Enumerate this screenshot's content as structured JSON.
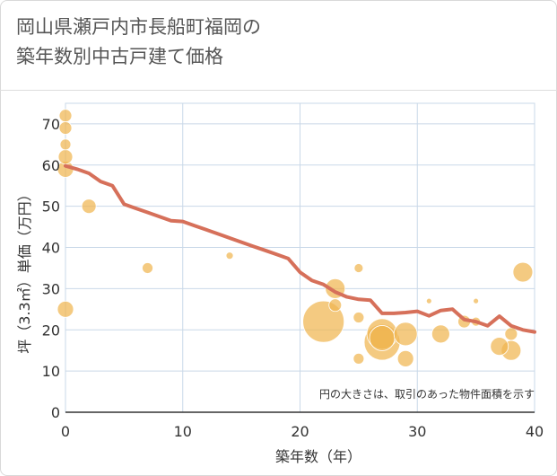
{
  "header": {
    "title_line1": "岡山県瀬戸内市長船町福岡の",
    "title_line2": "築年数別中古戸建て価格"
  },
  "chart_data": {
    "type": "scatter",
    "title": "岡山県瀬戸内市長船町福岡の築年数別中古戸建て価格",
    "xlabel": "築年数（年）",
    "ylabel": "坪（3.3㎡）単価（万円）",
    "xlim": [
      0,
      40
    ],
    "ylim": [
      0,
      75
    ],
    "x_ticks": [
      0,
      10,
      20,
      30,
      40
    ],
    "y_ticks": [
      0,
      10,
      20,
      30,
      40,
      50,
      60,
      70
    ],
    "grid": true,
    "note": "円の大きさは、取引のあった物件面積を示す",
    "colors": {
      "bubble": "#f0b650",
      "line": "#d6705a",
      "grid": "#c9d8e8"
    },
    "points": [
      {
        "x": 0,
        "y": 72,
        "size": 7
      },
      {
        "x": 0,
        "y": 69,
        "size": 7
      },
      {
        "x": 0,
        "y": 65,
        "size": 6
      },
      {
        "x": 0,
        "y": 62,
        "size": 8
      },
      {
        "x": 0,
        "y": 59,
        "size": 9
      },
      {
        "x": 0,
        "y": 25,
        "size": 9
      },
      {
        "x": 2,
        "y": 50,
        "size": 8
      },
      {
        "x": 7,
        "y": 35,
        "size": 6
      },
      {
        "x": 14,
        "y": 38,
        "size": 4
      },
      {
        "x": 22,
        "y": 22,
        "size": 23
      },
      {
        "x": 23,
        "y": 30,
        "size": 11
      },
      {
        "x": 23,
        "y": 26,
        "size": 7
      },
      {
        "x": 25,
        "y": 35,
        "size": 5
      },
      {
        "x": 25,
        "y": 23,
        "size": 6
      },
      {
        "x": 25,
        "y": 13,
        "size": 6
      },
      {
        "x": 27,
        "y": 19,
        "size": 17
      },
      {
        "x": 27,
        "y": 17,
        "size": 20
      },
      {
        "x": 27,
        "y": 18,
        "size": 14
      },
      {
        "x": 29,
        "y": 19,
        "size": 13
      },
      {
        "x": 29,
        "y": 13,
        "size": 9
      },
      {
        "x": 31,
        "y": 27,
        "size": 3
      },
      {
        "x": 32,
        "y": 19,
        "size": 10
      },
      {
        "x": 34,
        "y": 22,
        "size": 7
      },
      {
        "x": 35,
        "y": 27,
        "size": 3
      },
      {
        "x": 35,
        "y": 22,
        "size": 5
      },
      {
        "x": 37,
        "y": 16,
        "size": 10
      },
      {
        "x": 38,
        "y": 19,
        "size": 7
      },
      {
        "x": 38,
        "y": 15,
        "size": 11
      },
      {
        "x": 39,
        "y": 34,
        "size": 11
      }
    ],
    "trend": {
      "x": [
        0,
        1,
        2,
        3,
        4,
        5,
        6,
        7,
        8,
        9,
        10,
        11,
        12,
        13,
        14,
        15,
        16,
        17,
        18,
        19,
        20,
        21,
        22,
        23,
        24,
        25,
        26,
        27,
        28,
        29,
        30,
        31,
        32,
        33,
        34,
        35,
        36,
        37,
        38,
        39,
        40
      ],
      "y": [
        59.8,
        59,
        58,
        56,
        55,
        50.5,
        49.5,
        48.5,
        47.5,
        46.5,
        46.3,
        45.3,
        44.3,
        43.3,
        42.3,
        41.3,
        40.3,
        39.3,
        38.3,
        37.3,
        34,
        32,
        31,
        29.2,
        28,
        27.4,
        27.2,
        24,
        24,
        24.2,
        24.5,
        23.4,
        24.7,
        25,
        22.5,
        22,
        21,
        23.3,
        21,
        20,
        19.5
      ]
    }
  }
}
